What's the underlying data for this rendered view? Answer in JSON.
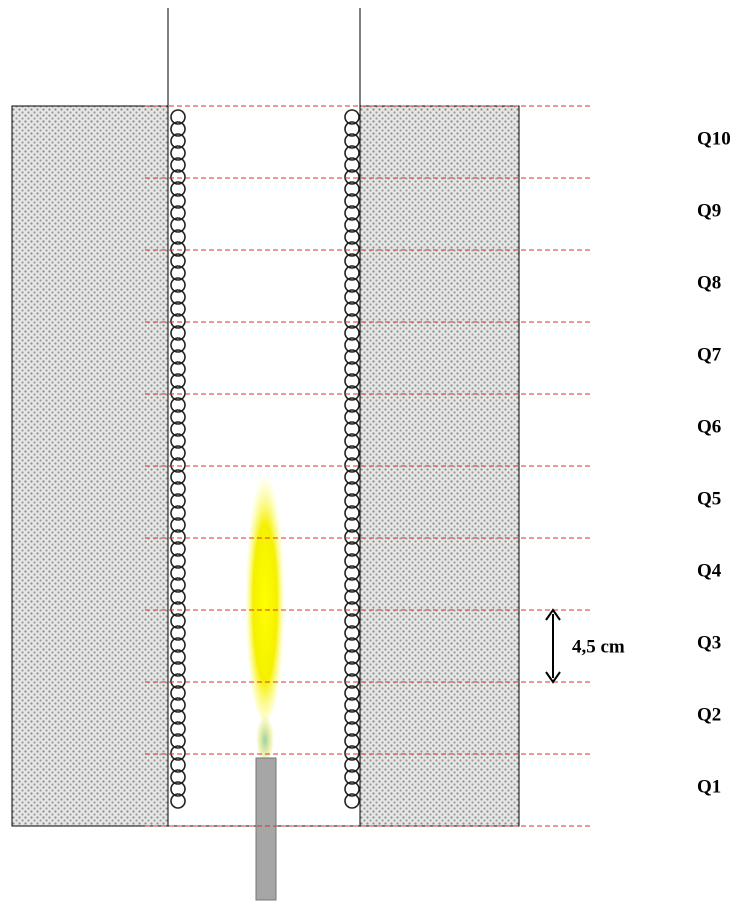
{
  "zones": [
    "Q10",
    "Q9",
    "Q8",
    "Q7",
    "Q6",
    "Q5",
    "Q4",
    "Q3",
    "Q2",
    "Q1"
  ],
  "dimension": "4,5 cm"
}
